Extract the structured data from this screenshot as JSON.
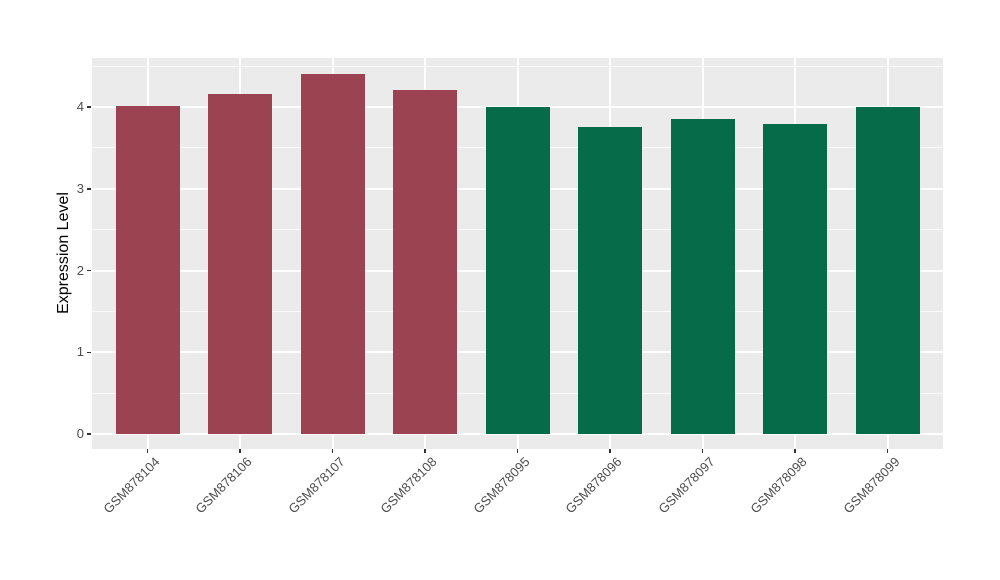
{
  "chart_data": {
    "type": "bar",
    "title": "",
    "xlabel": "",
    "ylabel": "Expression Level",
    "categories": [
      "GSM878104",
      "GSM878106",
      "GSM878107",
      "GSM878108",
      "GSM878095",
      "GSM878096",
      "GSM878097",
      "GSM878098",
      "GSM878099"
    ],
    "values": [
      4.01,
      4.16,
      4.4,
      4.21,
      4.0,
      3.76,
      3.85,
      3.79,
      4.0
    ],
    "bar_colors": [
      "#9B4350",
      "#9B4350",
      "#9B4350",
      "#9B4350",
      "#056B49",
      "#056B49",
      "#056B49",
      "#056B49",
      "#056B49"
    ],
    "yticks": [
      0,
      1,
      2,
      3,
      4
    ],
    "yticks_minor": [
      0.5,
      1.5,
      2.5,
      3.5,
      4.5
    ],
    "ylim": [
      -0.18,
      4.6
    ],
    "grid": "on",
    "legend": "none",
    "panel_bg": "#EBEBEB",
    "grid_color": "#FFFFFF",
    "axis_text_color": "#4D4D4D",
    "axis_title_color": "#000000",
    "tick_color": "#333333",
    "background": "#FFFFFF"
  }
}
